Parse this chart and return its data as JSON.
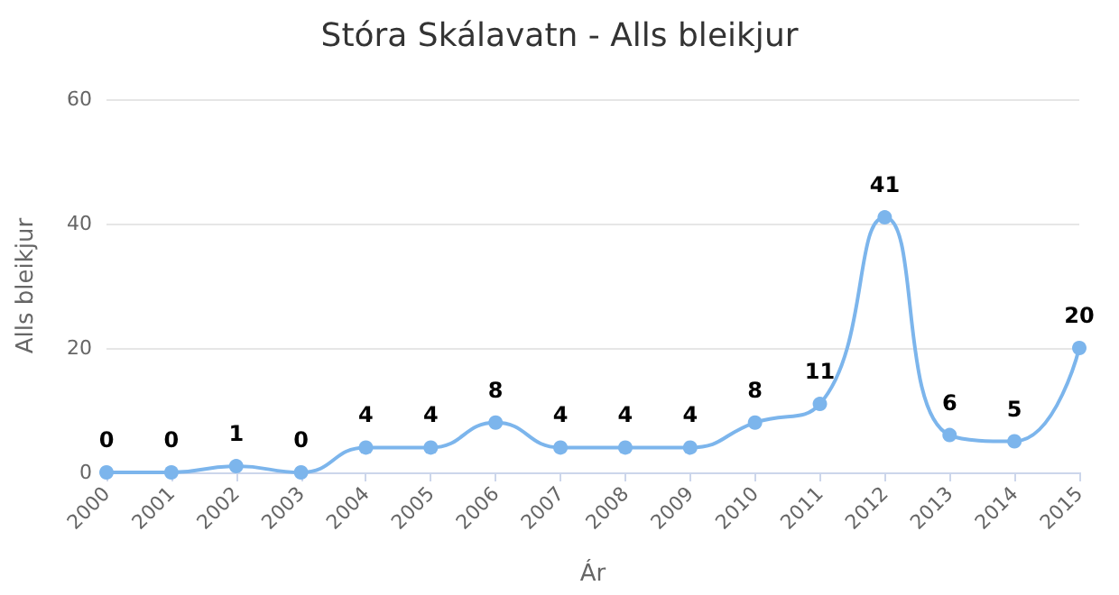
{
  "chart_data": {
    "type": "line",
    "title": "Stóra Skálavatn - Alls bleikjur",
    "xlabel": "Ár",
    "ylabel": "Alls bleikjur",
    "categories": [
      "2000",
      "2001",
      "2002",
      "2003",
      "2004",
      "2005",
      "2006",
      "2007",
      "2008",
      "2009",
      "2010",
      "2011",
      "2012",
      "2013",
      "2014",
      "2015"
    ],
    "series": [
      {
        "color": "#7cb5ec",
        "values": [
          0,
          0,
          1,
          0,
          4,
          4,
          8,
          4,
          4,
          4,
          8,
          11,
          41,
          6,
          5,
          20
        ]
      }
    ],
    "ylim": [
      0,
      60
    ],
    "yticks": [
      0,
      20,
      40,
      60
    ],
    "grid": "y",
    "data_labels": true,
    "marker": "circle",
    "line_style": "solid"
  }
}
